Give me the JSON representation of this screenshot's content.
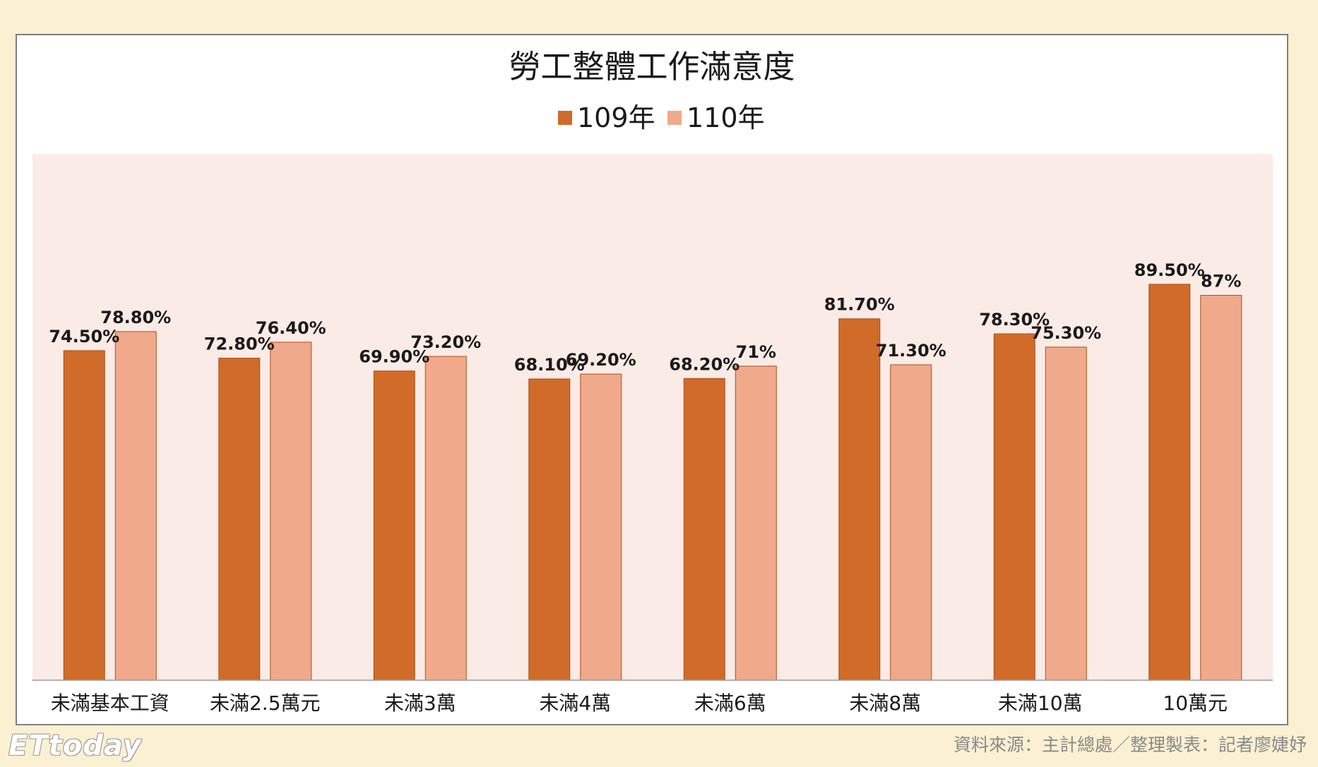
{
  "colors": {
    "series_109": "#d06b29",
    "series_110": "#f0a98a",
    "plot_bg": "#fbebe6",
    "page_bg": "#fcf0d2",
    "bar_stroke": "#a8521c"
  },
  "chart_data": {
    "type": "bar",
    "title": "勞工整體工作滿意度",
    "categories": [
      "未滿基本工資",
      "未滿2.5萬元",
      "未滿3萬",
      "未滿4萬",
      "未滿6萬",
      "未滿8萬",
      "未滿10萬",
      "10萬元"
    ],
    "series": [
      {
        "name": "109年",
        "values": [
          74.5,
          72.8,
          69.9,
          68.1,
          68.2,
          81.7,
          78.3,
          89.5
        ],
        "labels": [
          "74.50%",
          "72.80%",
          "69.90%",
          "68.10%",
          "68.20%",
          "81.70%",
          "78.30%",
          "89.50%"
        ]
      },
      {
        "name": "110年",
        "values": [
          78.8,
          76.4,
          73.2,
          69.2,
          71,
          71.3,
          75.3,
          87
        ],
        "labels": [
          "78.80%",
          "76.40%",
          "73.20%",
          "69.20%",
          "71%",
          "71.30%",
          "75.30%",
          "87%"
        ]
      }
    ],
    "xlabel": "",
    "ylabel": "",
    "ylim": [
      0,
      100
    ],
    "legend": "top-center",
    "grid": false
  },
  "footer": {
    "source": "資料來源：主計總處／整理製表：記者廖婕妤",
    "logo": "ETtoday"
  }
}
